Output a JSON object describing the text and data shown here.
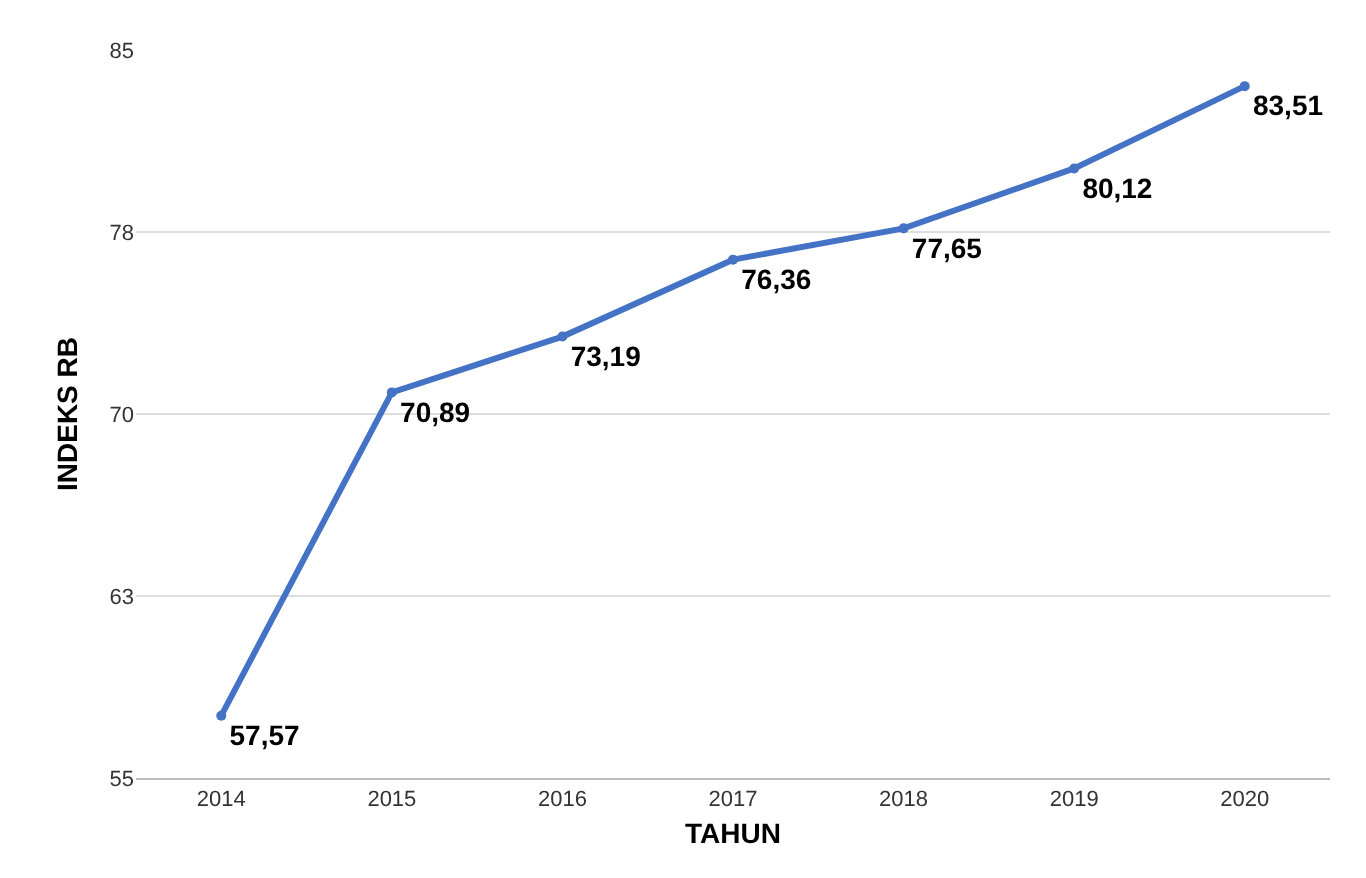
{
  "chart_data": {
    "type": "line",
    "xlabel": "TAHUN",
    "ylabel": "INDEKS RB",
    "categories": [
      "2014",
      "2015",
      "2016",
      "2017",
      "2018",
      "2019",
      "2020"
    ],
    "series": [
      {
        "color": "#4472c4",
        "values": [
          57.57,
          70.89,
          73.19,
          76.36,
          77.65,
          80.12,
          83.51
        ],
        "value_labels": [
          "57,57",
          "70,89",
          "73,19",
          "76,36",
          "77,65",
          "80,12",
          "83,51"
        ]
      }
    ],
    "ylim": [
      55,
      85
    ],
    "yticks": [
      55,
      {
        "value": 62.5,
        "label": "63"
      },
      70,
      {
        "value": 77.5,
        "label": "78"
      },
      85
    ],
    "grid": "y",
    "marker": "circle",
    "line_style": "solid",
    "legend": false
  }
}
